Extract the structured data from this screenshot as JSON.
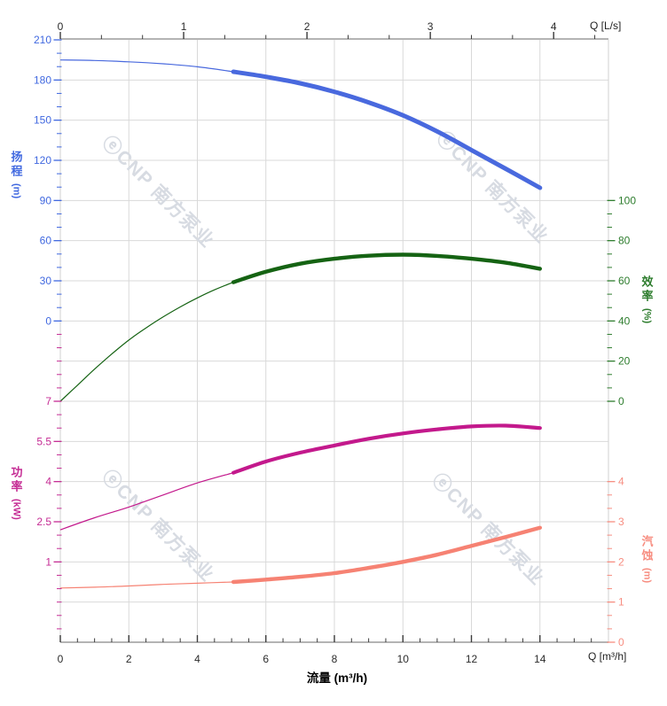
{
  "watermark": {
    "text": "ⓔCNP 南方泵业"
  },
  "axes": {
    "flow_bottom": {
      "title": "流量 (m³/h)",
      "corner_label": "Q [m³/h]",
      "tick_labels": [
        "0",
        "2",
        "4",
        "6",
        "8",
        "10",
        "12",
        "14"
      ],
      "color": "#2b2b2b"
    },
    "flow_top": {
      "corner_label": "Q [L/s]",
      "tick_labels": [
        "0",
        "1",
        "2",
        "3",
        "4"
      ],
      "color": "#2b2b2b"
    },
    "head_left": {
      "title": "扬程",
      "unit": "(m)",
      "tick_labels": [
        "210",
        "180",
        "150",
        "120",
        "90",
        "60",
        "30",
        "0"
      ],
      "color": "#4068e0"
    },
    "power_left": {
      "title": "功率",
      "unit": "(kW)",
      "tick_labels": [
        "7",
        "5.5",
        "4",
        "2.5",
        "1"
      ],
      "color": "#c52c94"
    },
    "eff_right": {
      "title": "效率",
      "unit": "(%)",
      "tick_labels": [
        "100",
        "80",
        "60",
        "40",
        "20",
        "0"
      ],
      "color": "#2e7d2e"
    },
    "npsh_right": {
      "title": "汽蚀",
      "unit": "(m)",
      "tick_labels": [
        "4",
        "3",
        "2",
        "1",
        "0"
      ],
      "color": "#f78d80"
    }
  },
  "chart_data": {
    "type": "line",
    "title": "",
    "xlabel": "流量 (m³/h)",
    "x_unit": "m³/h",
    "x_range": [
      0,
      16
    ],
    "x_major_tick": 2,
    "top_x_unit": "L/s",
    "top_x_ticks": [
      0,
      1,
      2,
      3,
      4
    ],
    "grid": true,
    "legend_position": "none",
    "series": [
      {
        "name": "扬程",
        "unit": "m",
        "axis": "head",
        "color": "#4969de",
        "axis_ticks_shown": [
          210,
          180,
          150,
          120,
          90,
          60,
          30,
          0
        ],
        "rated_segment": [
          5.05,
          14
        ],
        "points": [
          [
            0,
            195
          ],
          [
            1,
            194.6
          ],
          [
            2,
            193.6
          ],
          [
            3,
            192.1
          ],
          [
            4,
            189.9
          ],
          [
            5.05,
            186.2
          ],
          [
            6,
            182.4
          ],
          [
            7,
            177.6
          ],
          [
            8,
            171.2
          ],
          [
            9,
            163.3
          ],
          [
            10,
            153.6
          ],
          [
            11,
            141.6
          ],
          [
            12,
            127.7
          ],
          [
            13,
            113.7
          ],
          [
            14,
            99.5
          ]
        ]
      },
      {
        "name": "效率",
        "unit": "%",
        "axis": "eff",
        "color": "#156313",
        "axis_ticks_shown": [
          100,
          80,
          60,
          40,
          20,
          0
        ],
        "rated_segment": [
          5.05,
          14
        ],
        "points": [
          [
            0,
            0
          ],
          [
            0.5,
            8
          ],
          [
            1,
            16
          ],
          [
            1.5,
            23.5
          ],
          [
            2,
            30.5
          ],
          [
            2.5,
            36.5
          ],
          [
            3,
            42
          ],
          [
            3.5,
            47
          ],
          [
            4,
            51.5
          ],
          [
            4.5,
            55.5
          ],
          [
            5.05,
            59.3
          ],
          [
            6,
            64.5
          ],
          [
            7,
            68.5
          ],
          [
            8,
            71
          ],
          [
            9,
            72.5
          ],
          [
            10,
            73
          ],
          [
            11,
            72.4
          ],
          [
            12,
            71
          ],
          [
            13,
            69
          ],
          [
            14,
            66
          ]
        ]
      },
      {
        "name": "功率",
        "unit": "kW",
        "axis": "power",
        "color": "#c3198c",
        "axis_ticks_shown": [
          7,
          5.5,
          4,
          2.5,
          1
        ],
        "rated_segment": [
          5.05,
          14
        ],
        "points": [
          [
            0,
            2.2
          ],
          [
            1,
            2.65
          ],
          [
            2,
            3.05
          ],
          [
            3,
            3.5
          ],
          [
            4,
            3.95
          ],
          [
            5.05,
            4.33
          ],
          [
            6,
            4.75
          ],
          [
            7,
            5.08
          ],
          [
            8,
            5.35
          ],
          [
            9,
            5.6
          ],
          [
            10,
            5.8
          ],
          [
            11,
            5.95
          ],
          [
            12,
            6.06
          ],
          [
            13,
            6.09
          ],
          [
            14,
            6.0
          ]
        ]
      },
      {
        "name": "汽蚀",
        "unit": "m",
        "axis": "npsh",
        "color": "#f68273",
        "axis_ticks_shown": [
          4,
          3,
          2,
          1,
          0
        ],
        "rated_segment": [
          5.05,
          14
        ],
        "points": [
          [
            0,
            1.35
          ],
          [
            1,
            1.37
          ],
          [
            2,
            1.4
          ],
          [
            3,
            1.44
          ],
          [
            4,
            1.47
          ],
          [
            5.05,
            1.5
          ],
          [
            6,
            1.56
          ],
          [
            7,
            1.63
          ],
          [
            8,
            1.72
          ],
          [
            9,
            1.85
          ],
          [
            10,
            2.0
          ],
          [
            11,
            2.18
          ],
          [
            12,
            2.4
          ],
          [
            13,
            2.62
          ],
          [
            14,
            2.85
          ]
        ]
      }
    ]
  }
}
